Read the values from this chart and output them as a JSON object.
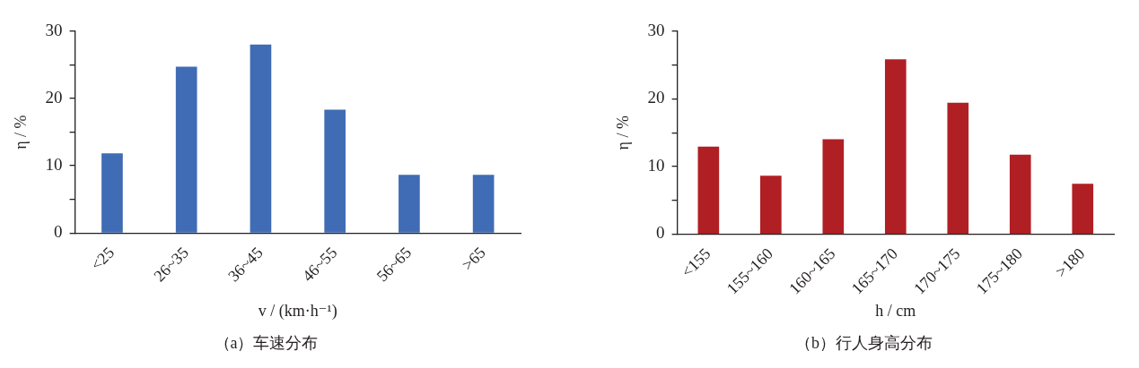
{
  "chart_data": [
    {
      "type": "bar",
      "title": "（a）车速分布",
      "xlabel": "v / (km·h⁻¹)",
      "ylabel": "η / %",
      "categories": [
        "<25",
        "26~35",
        "36~45",
        "46~55",
        "56~65",
        ">65"
      ],
      "values": [
        11.8,
        24.7,
        28.0,
        18.3,
        8.6,
        8.6
      ],
      "color": "#3f6cb4",
      "ylim": [
        0,
        30
      ],
      "yticks": [
        0,
        {
          "value": 5,
          "label": null
        },
        10,
        {
          "value": 15,
          "label": null
        },
        20,
        {
          "value": 25,
          "label": null
        },
        30
      ]
    },
    {
      "type": "bar",
      "title": "（b）行人身高分布",
      "xlabel": "h / cm",
      "ylabel": "η / %",
      "categories": [
        "<155",
        "155~160",
        "160~165",
        "165~170",
        "170~175",
        "175~180",
        ">180"
      ],
      "values": [
        12.9,
        8.6,
        14.0,
        25.8,
        19.4,
        11.7,
        7.4
      ],
      "color": "#b01f24",
      "ylim": [
        0,
        30
      ],
      "yticks": [
        0,
        {
          "value": 5,
          "label": null
        },
        10,
        {
          "value": 15,
          "label": null
        },
        20,
        {
          "value": 25,
          "label": null
        },
        30
      ]
    }
  ]
}
